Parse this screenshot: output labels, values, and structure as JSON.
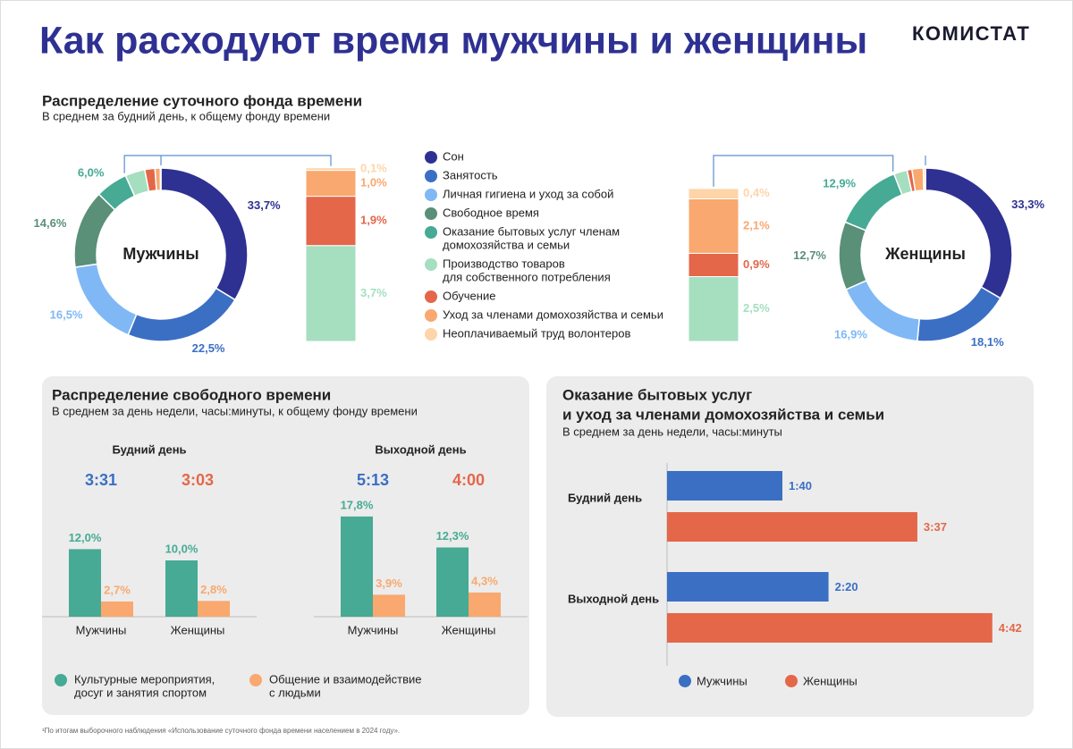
{
  "header": {
    "title": "Как расходуют время мужчины и женщины",
    "brand": "КОМИСТАТ"
  },
  "chart_data": [
    {
      "type": "donut",
      "title": "Распределение суточного фонда времени",
      "subtitle": "В среднем за будний  день, к общему  фонду времени",
      "categories": [
        [
          "Сон"
        ],
        [
          "Занятость"
        ],
        [
          "Личная гигиена и уход за собой"
        ],
        [
          "Свободное время"
        ],
        [
          "Оказание бытовых услуг членам",
          "домохозяйства и семьи"
        ],
        [
          "Производство товаров",
          "для собственного потребления"
        ],
        [
          "Обучение"
        ],
        [
          "Уход за членами домохозяйства и семьи"
        ],
        [
          "Неоплачиваемый труд волонтеров"
        ]
      ],
      "colors": [
        "#2e3192",
        "#3a6fc4",
        "#7fb8f5",
        "#5a8f78",
        "#46aa94",
        "#a5dfc0",
        "#e4674a",
        "#f9a86f",
        "#fdd5a8"
      ],
      "series": [
        {
          "name": "Мужчины",
          "values": [
            33.7,
            22.5,
            16.5,
            14.6,
            6.0,
            3.7,
            1.9,
            1.0,
            0.1
          ],
          "value_labels": [
            "33,7%",
            "22,5%",
            "16,5%",
            "14,6%",
            "6,0%",
            "3,7%",
            "1,9%",
            "1,0%",
            "0,1%"
          ]
        },
        {
          "name": "Женщины",
          "values": [
            33.3,
            18.1,
            16.9,
            12.7,
            12.9,
            2.5,
            0.9,
            2.1,
            0.4
          ],
          "value_labels": [
            "33,3%",
            "18,1%",
            "16,9%",
            "12,7%",
            "12,9%",
            "2,5%",
            "0,9%",
            "2,1%",
            "0,4%"
          ]
        }
      ]
    },
    {
      "type": "grouped-bar",
      "title": "Распределение свободного времени",
      "subtitle": "В среднем за день недели,  часы:минуты,  к общему  фонду времени",
      "categories": [
        "Мужчины",
        "Женщины"
      ],
      "total_colors": [
        "#3a6fc4",
        "#e4674a"
      ],
      "legend": [
        {
          "name": [
            "Культурные мероприятия,",
            "досуг и занятия спортом"
          ],
          "color": "#46aa94"
        },
        {
          "name": [
            "Общение  и взаимодействие",
            "с людьми"
          ],
          "color": "#f9a86f"
        }
      ],
      "panels": [
        {
          "title": "Будний день",
          "totals": [
            "3:31",
            "3:03"
          ],
          "series": [
            {
              "values": [
                12.0,
                10.0
              ],
              "value_labels": [
                "12,0%",
                "10,0%"
              ]
            },
            {
              "values": [
                2.7,
                2.8
              ],
              "value_labels": [
                "2,7%",
                "2,8%"
              ]
            }
          ]
        },
        {
          "title": "Выходной день",
          "totals": [
            "5:13",
            "4:00"
          ],
          "series": [
            {
              "values": [
                17.8,
                12.3
              ],
              "value_labels": [
                "17,8%",
                "12,3%"
              ]
            },
            {
              "values": [
                3.9,
                4.3
              ],
              "value_labels": [
                "3,9%",
                "4,3%"
              ]
            }
          ]
        }
      ]
    },
    {
      "type": "hbar",
      "title": [
        "Оказание бытовых услуг",
        "и уход за членами домохозяйства  и семьи"
      ],
      "subtitle": "В среднем за день недели,  часы:минуты",
      "categories": [
        "Будний день",
        "Выходной день"
      ],
      "series": [
        {
          "name": "Мужчины",
          "color": "#3a6fc4",
          "values": [
            100,
            140
          ],
          "value_labels": [
            "1:40",
            "2:20"
          ]
        },
        {
          "name": "Женщины",
          "color": "#e4674a",
          "values": [
            217,
            282
          ],
          "value_labels": [
            "3:37",
            "4:42"
          ]
        }
      ]
    }
  ],
  "footnote": "¹По итогам выборочного наблюдения «Использование суточного фонда времени населением в 2024 году»."
}
